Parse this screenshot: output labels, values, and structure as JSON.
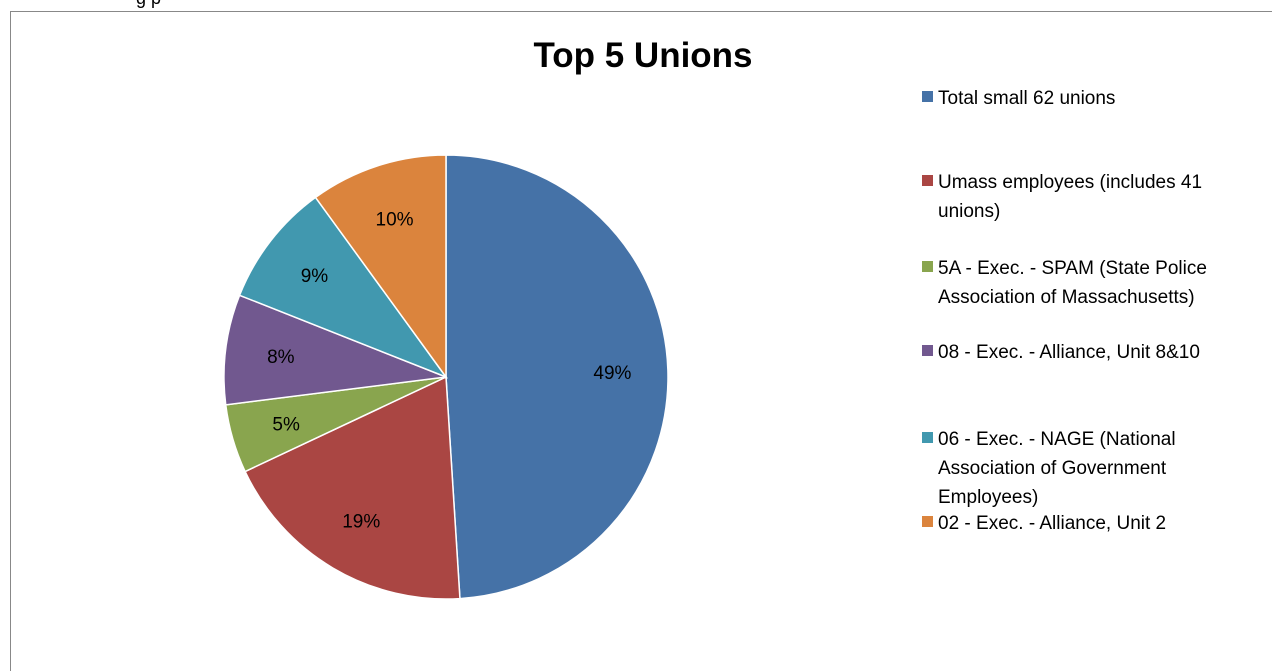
{
  "clipped_text": "g                                              p",
  "chart_data": {
    "type": "pie",
    "title": "Top 5 Unions",
    "categories": [
      "Total small 62 unions",
      "Umass employees (includes 41 unions)",
      "5A - Exec. - SPAM (State Police Association of Massachusetts)",
      "08 - Exec. - Alliance, Unit 8&10",
      "06 - Exec. - NAGE (National Association of Government Employees)",
      "02 - Exec. - Alliance, Unit 2"
    ],
    "values": [
      49,
      19,
      5,
      8,
      9,
      10
    ],
    "data_labels": [
      "49%",
      "19%",
      "5%",
      "8%",
      "9%",
      "10%"
    ],
    "colors": [
      "#4572a7",
      "#aa4643",
      "#89a54e",
      "#71588f",
      "#4198af",
      "#db843d"
    ],
    "legend_position": "right"
  }
}
